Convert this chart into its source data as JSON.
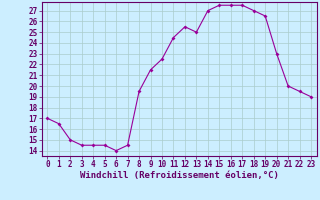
{
  "x": [
    0,
    1,
    2,
    3,
    4,
    5,
    6,
    7,
    8,
    9,
    10,
    11,
    12,
    13,
    14,
    15,
    16,
    17,
    18,
    19,
    20,
    21,
    22,
    23
  ],
  "y": [
    17,
    16.5,
    15,
    14.5,
    14.5,
    14.5,
    14,
    14.5,
    19.5,
    21.5,
    22.5,
    24.5,
    25.5,
    25,
    27,
    27.5,
    27.5,
    27.5,
    27,
    26.5,
    23,
    20,
    19.5,
    19
  ],
  "xlim": [
    -0.5,
    23.5
  ],
  "ylim": [
    13.5,
    27.8
  ],
  "yticks": [
    14,
    15,
    16,
    17,
    18,
    19,
    20,
    21,
    22,
    23,
    24,
    25,
    26,
    27
  ],
  "xticks": [
    0,
    1,
    2,
    3,
    4,
    5,
    6,
    7,
    8,
    9,
    10,
    11,
    12,
    13,
    14,
    15,
    16,
    17,
    18,
    19,
    20,
    21,
    22,
    23
  ],
  "xlabel": "Windchill (Refroidissement éolien,°C)",
  "line_color": "#990099",
  "marker": "D",
  "marker_size": 2,
  "bg_color": "#cceeff",
  "grid_color": "#aacccc",
  "tick_fontsize": 5.5,
  "xlabel_fontsize": 6.5
}
